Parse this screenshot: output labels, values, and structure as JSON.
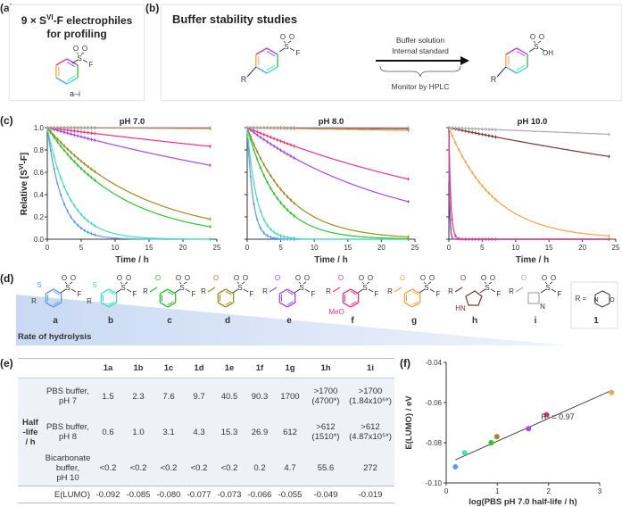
{
  "panel_labels": {
    "a": "(a)",
    "b": "(b)",
    "c": "(c)",
    "d": "(d)",
    "e": "(e)",
    "f": "(f)"
  },
  "panel_a": {
    "title_line1": "9 × S",
    "title_sup": "VI",
    "title_line1b": "-F electrophiles",
    "title_line2": "for profiling",
    "compound_range": "a–i"
  },
  "panel_b": {
    "title": "Buffer stability studies",
    "arrow_top1": "Buffer solution",
    "arrow_top2": "Internal standard",
    "arrow_bottom": "Monitor by HPLC"
  },
  "atoms": {
    "S": "S",
    "O": "O",
    "F": "F",
    "R": "R",
    "OH": "OH",
    "MeO": "MeO",
    "HN": "HN",
    "N": "N"
  },
  "colors": {
    "a": "#5b9cf2",
    "b": "#3fe3b8",
    "c": "#2cc52c",
    "d": "#9b8c1e",
    "e": "#a945ef",
    "f": "#f2327d",
    "g": "#f9a347",
    "h": "#7a3434",
    "i": "#a8a8a8"
  },
  "panel_c": {
    "ylabel": "Relative [S",
    "ylabel_sup": "VI",
    "ylabel_end": "-F]",
    "xlabel": "Time / h",
    "yticks": [
      "0.0",
      "0.2",
      "0.4",
      "0.6",
      "0.8",
      "1.0"
    ],
    "xticks": [
      "0",
      "5",
      "10",
      "15",
      "20",
      "25"
    ],
    "sample_times_h": [
      0,
      0.5,
      1,
      1.5,
      2,
      2.5,
      3,
      3.5,
      4,
      4.5,
      5,
      5.5,
      6,
      6.5,
      7,
      24
    ]
  },
  "chart_data": [
    {
      "type": "line",
      "title": "pH 7.0",
      "xlabel": "Time / h",
      "ylabel": "Relative [SVI-F]",
      "xlim": [
        0,
        25
      ],
      "ylim": [
        0,
        1
      ],
      "series": [
        {
          "key": "a",
          "half_life_h": 1.5
        },
        {
          "key": "b",
          "half_life_h": 2.3
        },
        {
          "key": "c",
          "half_life_h": 7.6
        },
        {
          "key": "d",
          "half_life_h": 9.7
        },
        {
          "key": "e",
          "half_life_h": 40.5
        },
        {
          "key": "f",
          "half_life_h": 90.3
        },
        {
          "key": "g",
          "half_life_h": 1700
        },
        {
          "key": "h",
          "half_life_h": 4700
        },
        {
          "key": "i",
          "half_life_h": 1840000
        }
      ]
    },
    {
      "type": "line",
      "title": "pH 8.0",
      "xlabel": "Time / h",
      "xlim": [
        0,
        25
      ],
      "ylim": [
        0,
        1
      ],
      "series": [
        {
          "key": "a",
          "half_life_h": 0.6
        },
        {
          "key": "b",
          "half_life_h": 1.0
        },
        {
          "key": "c",
          "half_life_h": 3.1
        },
        {
          "key": "d",
          "half_life_h": 4.3
        },
        {
          "key": "e",
          "half_life_h": 15.3
        },
        {
          "key": "f",
          "half_life_h": 26.9
        },
        {
          "key": "g",
          "half_life_h": 612
        },
        {
          "key": "h",
          "half_life_h": 1510
        },
        {
          "key": "i",
          "half_life_h": 487000
        }
      ]
    },
    {
      "type": "line",
      "title": "pH 10.0",
      "xlabel": "Time / h",
      "xlim": [
        0,
        25
      ],
      "ylim": [
        0,
        1
      ],
      "series": [
        {
          "key": "a",
          "half_life_h": "<0.2"
        },
        {
          "key": "b",
          "half_life_h": "<0.2"
        },
        {
          "key": "c",
          "half_life_h": "<0.2"
        },
        {
          "key": "d",
          "half_life_h": "<0.2"
        },
        {
          "key": "e",
          "half_life_h": "<0.2"
        },
        {
          "key": "f",
          "half_life_h": 0.2
        },
        {
          "key": "g",
          "half_life_h": 4.7
        },
        {
          "key": "h",
          "half_life_h": 55.6
        },
        {
          "key": "i",
          "half_life_h": 272
        }
      ]
    },
    {
      "type": "scatter",
      "xlabel": "log(PBS pH 7.0 half-life / h)",
      "ylabel": "E(LUMO) / eV",
      "xlim": [
        0,
        3.3
      ],
      "ylim": [
        -0.1,
        -0.04
      ],
      "xticks": [
        "0",
        "1",
        "2",
        "3"
      ],
      "yticks": [
        "-0.10",
        "-0.08",
        "-0.06",
        "-0.04"
      ],
      "points": [
        {
          "key": "a",
          "x": 0.18,
          "y": -0.092
        },
        {
          "key": "b",
          "x": 0.36,
          "y": -0.085
        },
        {
          "key": "c",
          "x": 0.88,
          "y": -0.08
        },
        {
          "key": "d",
          "x": 0.99,
          "y": -0.077
        },
        {
          "key": "e",
          "x": 1.61,
          "y": -0.073
        },
        {
          "key": "f",
          "x": 1.96,
          "y": -0.066
        },
        {
          "key": "g",
          "x": 3.23,
          "y": -0.055
        }
      ],
      "fit": {
        "x": [
          0.18,
          3.23
        ],
        "y": [
          -0.0885,
          -0.054
        ]
      },
      "annotation": "R² = 0.97"
    }
  ],
  "panel_d": {
    "compounds": [
      "a",
      "b",
      "c",
      "d",
      "e",
      "f",
      "g",
      "h",
      "i"
    ],
    "gradient_label": "Rate of hydrolysis",
    "r_def_label": "R =",
    "r_def_id": "1"
  },
  "table": {
    "columns": [
      "1a",
      "1b",
      "1c",
      "1d",
      "1e",
      "1f",
      "1g",
      "1h",
      "1i"
    ],
    "row_group_label": [
      "Half",
      "-life",
      "/ h"
    ],
    "rows": [
      {
        "condition": [
          "PBS buffer,",
          "pH 7"
        ],
        "values": [
          "1.5",
          "2.3",
          "7.6",
          "9.7",
          "40.5",
          "90.3",
          "1700",
          ">1700\n(4700*)",
          ">1700\n(1.84x10⁶*)"
        ]
      },
      {
        "condition": [
          "PBS buffer,",
          "pH 8"
        ],
        "values": [
          "0.6",
          "1.0",
          "3.1",
          "4.3",
          "15.3",
          "26.9",
          "612",
          ">612\n(1510*)",
          ">612\n(4.87x10⁵*)"
        ]
      },
      {
        "condition": [
          "Bicarbonate",
          "buffer,",
          "pH 10"
        ],
        "values": [
          "<0.2",
          "<0.2",
          "<0.2",
          "<0.2",
          "<0.2",
          "0.2",
          "4.7",
          "55.6",
          "272"
        ]
      }
    ],
    "lumo_label": "E(LUMO)",
    "lumo_values": [
      "-0.092",
      "-0.085",
      "-0.080",
      "-0.077",
      "-0.073",
      "-0.066",
      "-0.055",
      "-0.049",
      "-0.019"
    ]
  }
}
